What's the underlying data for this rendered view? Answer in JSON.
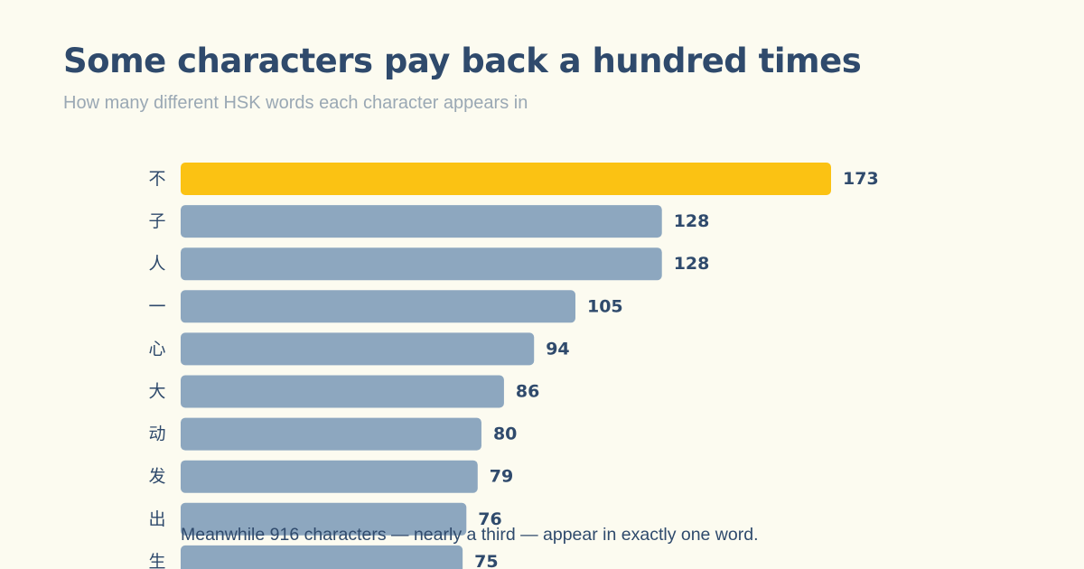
{
  "title": "Some characters pay back a hundred times",
  "subtitle": "How many different HSK words each character appears in",
  "note": "Meanwhile 916 characters — nearly a third — appear in exactly one word.",
  "colors": {
    "background": "#fcfbf0",
    "highlight_bar": "#fbc213",
    "default_bar": "#8da7bf",
    "text": "#2f4a6c",
    "subtitle": "#9aa8b4"
  },
  "chart_data": {
    "type": "bar",
    "orientation": "horizontal",
    "title": "Some characters pay back a hundred times",
    "subtitle": "How many different HSK words each character appears in",
    "categories": [
      "不",
      "子",
      "人",
      "一",
      "心",
      "大",
      "动",
      "发",
      "出",
      "生"
    ],
    "values": [
      173,
      128,
      128,
      105,
      94,
      86,
      80,
      79,
      76,
      75
    ],
    "highlighted": [
      "不"
    ],
    "xlim": [
      0,
      173
    ],
    "grid": false,
    "legend": "none"
  }
}
